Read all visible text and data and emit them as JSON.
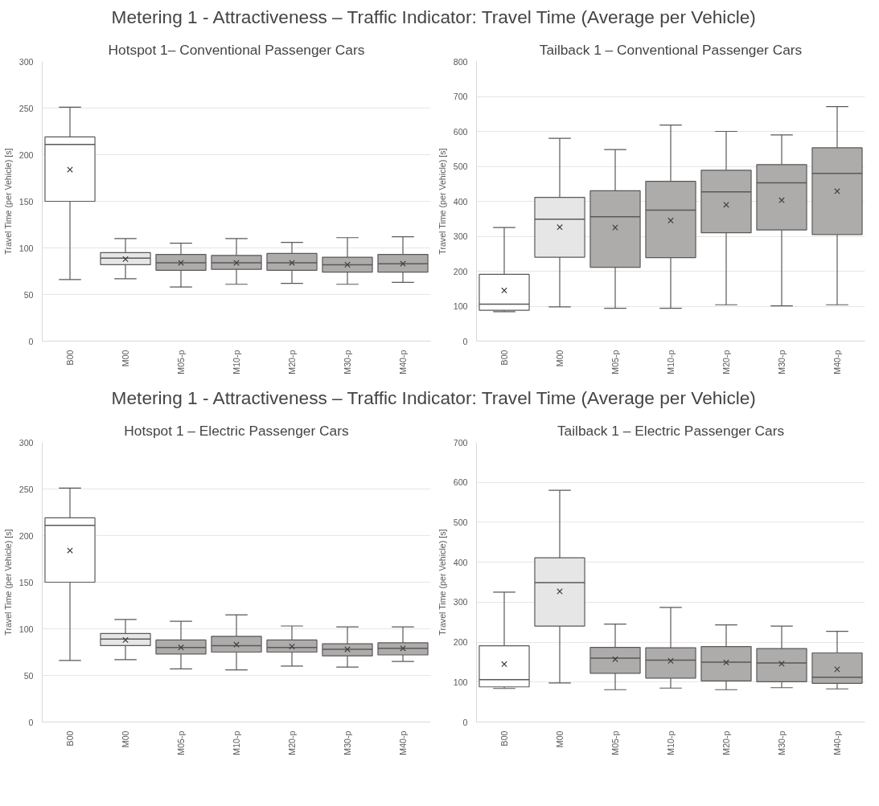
{
  "chart_data": [
    {
      "type": "other",
      "title": "Metering 1 - Attractiveness – Traffic Indicator: Travel Time (Average per Vehicle)"
    },
    {
      "type": "box",
      "title": "Hotspot 1– Conventional Passenger Cars",
      "ylabel": "Travel Time (per Vehicle) [s]",
      "categories": [
        "B00",
        "M00",
        "M05-p",
        "M10-p",
        "M20-p",
        "M30-p",
        "M40-p"
      ],
      "colors": [
        "#ffffff",
        "#e7e6e6",
        "#aeabab",
        "#aeabab",
        "#aeabab",
        "#aeabab",
        "#aeabab"
      ],
      "ylim": [
        0,
        300
      ],
      "yticks": [
        0,
        50,
        100,
        150,
        200,
        250,
        300
      ],
      "grid": "y",
      "boxes": [
        {
          "low": 66,
          "q1": 150,
          "median": 211,
          "q3": 219,
          "high": 251,
          "mean": 184
        },
        {
          "low": 67,
          "q1": 82,
          "median": 89,
          "q3": 95,
          "high": 110,
          "mean": 88
        },
        {
          "low": 58,
          "q1": 76,
          "median": 84,
          "q3": 93,
          "high": 105,
          "mean": 84
        },
        {
          "low": 61,
          "q1": 77,
          "median": 84,
          "q3": 92,
          "high": 110,
          "mean": 84
        },
        {
          "low": 62,
          "q1": 76,
          "median": 84,
          "q3": 94,
          "high": 106,
          "mean": 84
        },
        {
          "low": 61,
          "q1": 74,
          "median": 82,
          "q3": 90,
          "high": 111,
          "mean": 82
        },
        {
          "low": 63,
          "q1": 74,
          "median": 83,
          "q3": 93,
          "high": 112,
          "mean": 83
        }
      ]
    },
    {
      "type": "box",
      "title": "Tailback 1 – Conventional Passenger Cars",
      "ylabel": "Travel Time (per Vehicle) [s]",
      "categories": [
        "B00",
        "M00",
        "M05-p",
        "M10-p",
        "M20-p",
        "M30-p",
        "M40-p"
      ],
      "colors": [
        "#ffffff",
        "#e7e6e6",
        "#aeabab",
        "#aeabab",
        "#aeabab",
        "#aeabab",
        "#aeabab"
      ],
      "ylim": [
        0,
        800
      ],
      "yticks": [
        0,
        100,
        200,
        300,
        400,
        500,
        600,
        700,
        800
      ],
      "grid": "y",
      "boxes": [
        {
          "low": 84,
          "q1": 88,
          "median": 106,
          "q3": 191,
          "high": 325,
          "mean": 145
        },
        {
          "low": 98,
          "q1": 240,
          "median": 349,
          "q3": 411,
          "high": 580,
          "mean": 326
        },
        {
          "low": 94,
          "q1": 211,
          "median": 356,
          "q3": 430,
          "high": 548,
          "mean": 325
        },
        {
          "low": 94,
          "q1": 239,
          "median": 375,
          "q3": 457,
          "high": 618,
          "mean": 345
        },
        {
          "low": 104,
          "q1": 310,
          "median": 427,
          "q3": 489,
          "high": 600,
          "mean": 390
        },
        {
          "low": 101,
          "q1": 318,
          "median": 453,
          "q3": 505,
          "high": 590,
          "mean": 403
        },
        {
          "low": 104,
          "q1": 305,
          "median": 480,
          "q3": 553,
          "high": 671,
          "mean": 429
        }
      ]
    },
    {
      "type": "other",
      "title": "Metering 1 - Attractiveness – Traffic Indicator: Travel Time (Average per Vehicle)"
    },
    {
      "type": "box",
      "title": "Hotspot 1 – Electric Passenger Cars",
      "ylabel": "Travel Time (per Vehicle) [s]",
      "categories": [
        "B00",
        "M00",
        "M05-p",
        "M10-p",
        "M20-p",
        "M30-p",
        "M40-p"
      ],
      "colors": [
        "#ffffff",
        "#e7e6e6",
        "#aeabab",
        "#aeabab",
        "#aeabab",
        "#aeabab",
        "#aeabab"
      ],
      "ylim": [
        0,
        300
      ],
      "yticks": [
        0,
        50,
        100,
        150,
        200,
        250,
        300
      ],
      "grid": "y",
      "boxes": [
        {
          "low": 66,
          "q1": 150,
          "median": 211,
          "q3": 219,
          "high": 251,
          "mean": 184
        },
        {
          "low": 67,
          "q1": 82,
          "median": 89,
          "q3": 95,
          "high": 110,
          "mean": 88
        },
        {
          "low": 57,
          "q1": 73,
          "median": 80,
          "q3": 88,
          "high": 108,
          "mean": 80
        },
        {
          "low": 56,
          "q1": 75,
          "median": 82,
          "q3": 92,
          "high": 115,
          "mean": 83
        },
        {
          "low": 60,
          "q1": 75,
          "median": 80,
          "q3": 88,
          "high": 103,
          "mean": 81
        },
        {
          "low": 59,
          "q1": 71,
          "median": 78,
          "q3": 84,
          "high": 102,
          "mean": 78
        },
        {
          "low": 65,
          "q1": 72,
          "median": 79,
          "q3": 85,
          "high": 102,
          "mean": 79
        }
      ]
    },
    {
      "type": "box",
      "title": "Tailback 1 – Electric Passenger Cars",
      "ylabel": "Travel Time (per Vehicle) [s]",
      "categories": [
        "B00",
        "M00",
        "M05-p",
        "M10-p",
        "M20-p",
        "M30-p",
        "M40-p"
      ],
      "colors": [
        "#ffffff",
        "#e7e6e6",
        "#aeabab",
        "#aeabab",
        "#aeabab",
        "#aeabab",
        "#aeabab"
      ],
      "ylim": [
        0,
        700
      ],
      "yticks": [
        0,
        100,
        200,
        300,
        400,
        500,
        600,
        700
      ],
      "grid": "y",
      "boxes": [
        {
          "low": 84,
          "q1": 88,
          "median": 106,
          "q3": 191,
          "high": 325,
          "mean": 145
        },
        {
          "low": 98,
          "q1": 240,
          "median": 349,
          "q3": 411,
          "high": 580,
          "mean": 327
        },
        {
          "low": 81,
          "q1": 122,
          "median": 160,
          "q3": 187,
          "high": 245,
          "mean": 157
        },
        {
          "low": 85,
          "q1": 110,
          "median": 155,
          "q3": 186,
          "high": 287,
          "mean": 153
        },
        {
          "low": 81,
          "q1": 103,
          "median": 150,
          "q3": 189,
          "high": 243,
          "mean": 149
        },
        {
          "low": 86,
          "q1": 101,
          "median": 148,
          "q3": 184,
          "high": 240,
          "mean": 146
        },
        {
          "low": 83,
          "q1": 97,
          "median": 112,
          "q3": 173,
          "high": 227,
          "mean": 132
        }
      ]
    }
  ]
}
